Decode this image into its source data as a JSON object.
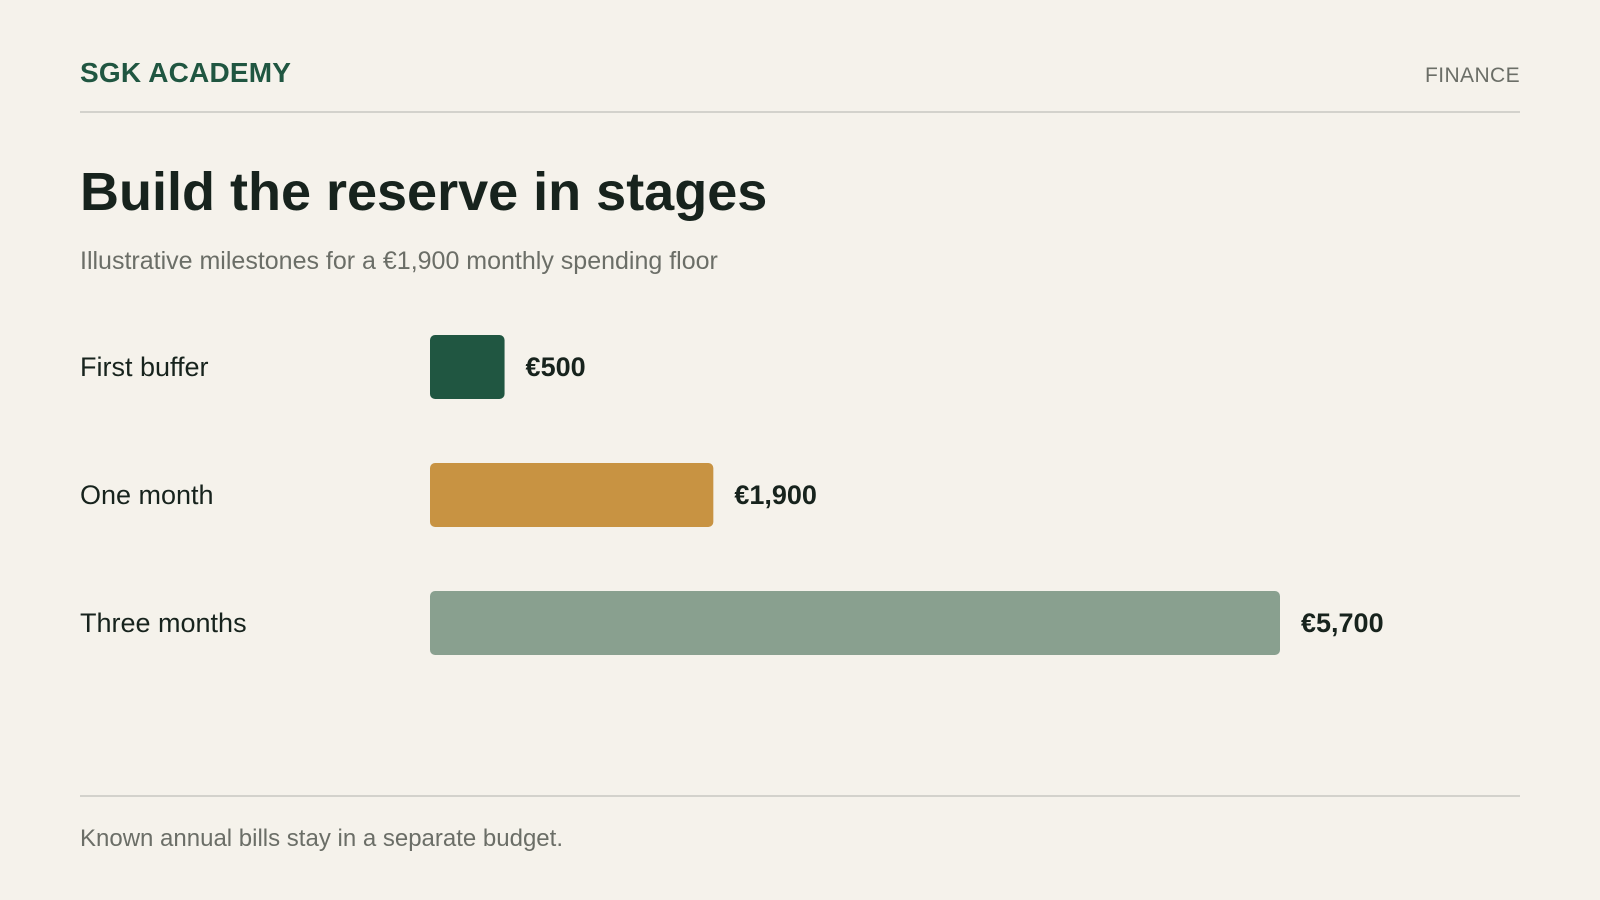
{
  "header": {
    "brand": "SGK ACADEMY",
    "section": "FINANCE"
  },
  "title": "Build the reserve in stages",
  "subtitle": "Illustrative milestones for a €1,900 monthly spending floor",
  "footer": {
    "note": "Known annual bills stay in a separate budget."
  },
  "colors": {
    "background": "#f5f2eb",
    "brand": "#205641",
    "muted_text": "#6b6e67",
    "rule": "#d3d2cc"
  },
  "chart_data": {
    "type": "bar",
    "orientation": "horizontal",
    "categories": [
      "First buffer",
      "One month",
      "Three months"
    ],
    "values": [
      500,
      1900,
      5700
    ],
    "value_labels": [
      "€500",
      "€1,900",
      "€5,700"
    ],
    "bar_colors": [
      "#205641",
      "#c89342",
      "#89a08f"
    ],
    "xlim": [
      0,
      5700
    ],
    "grid": false,
    "legend": "none",
    "title": "Build the reserve in stages",
    "subtitle": "Illustrative milestones for a €1,900 monthly spending floor"
  }
}
